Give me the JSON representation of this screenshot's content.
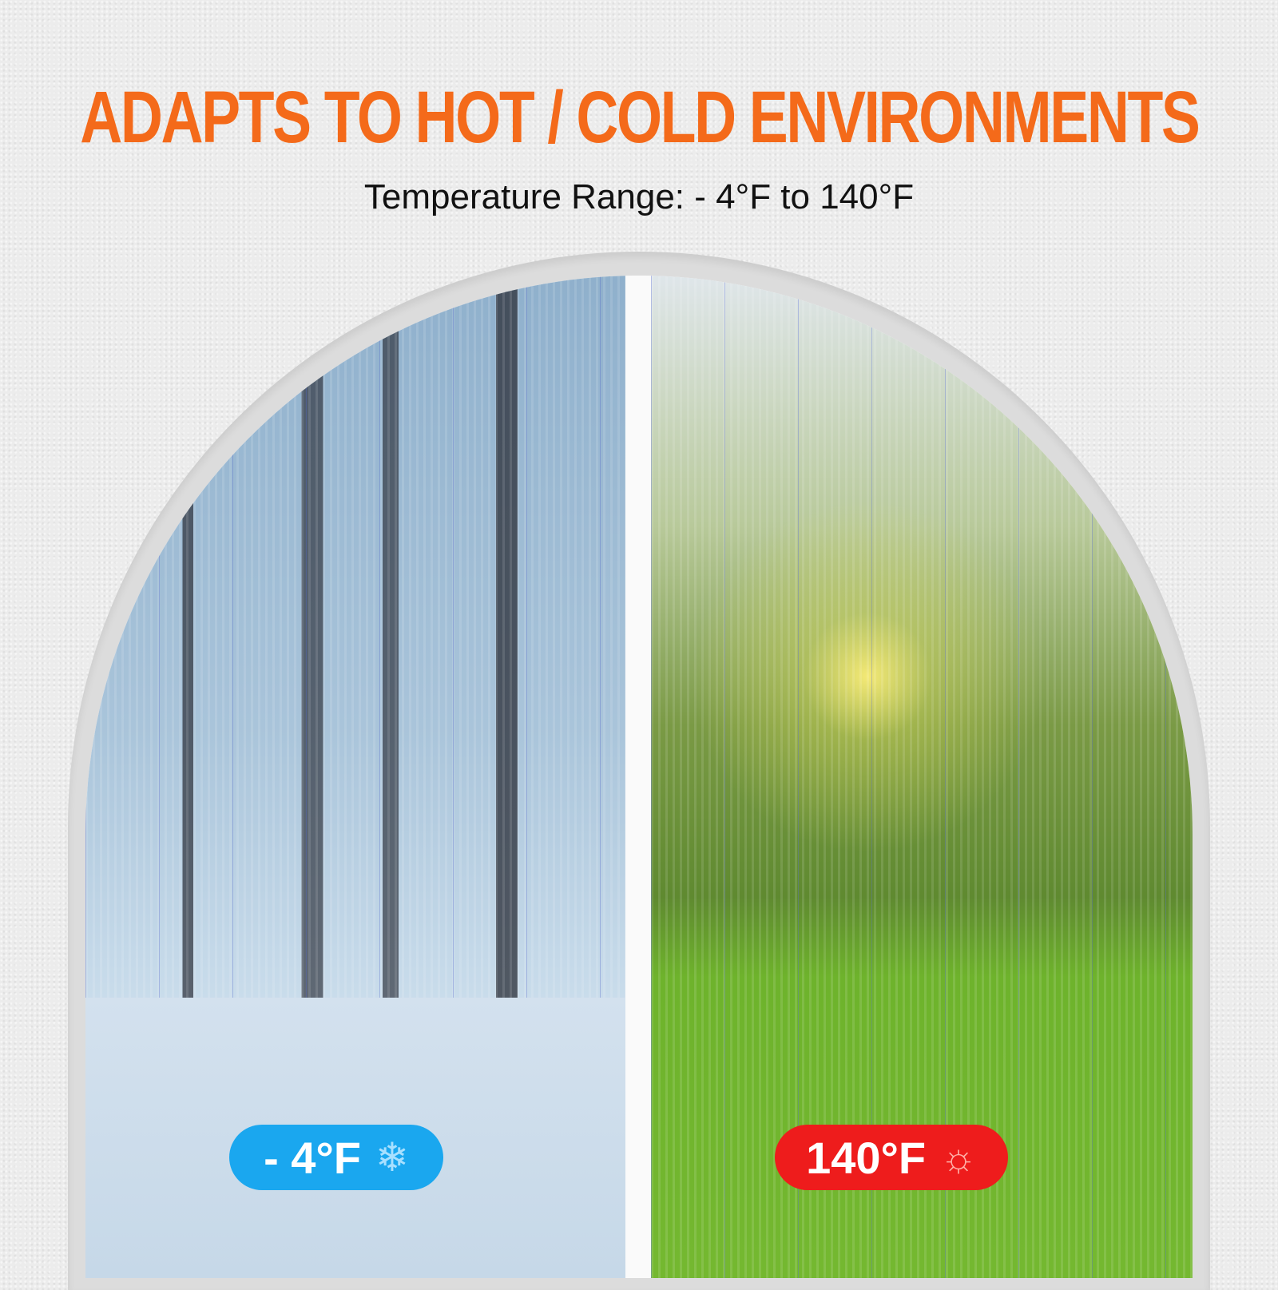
{
  "header": {
    "title": "ADAPTS TO HOT / COLD ENVIRONMENTS",
    "subtitle": "Temperature Range: - 4°F to 140°F"
  },
  "badges": [
    {
      "label": "- 4°F",
      "icon": "snowflake-icon",
      "color": "#1aa7ef"
    },
    {
      "label": "140°F",
      "icon": "sun-icon",
      "color": "#ee1c1c"
    }
  ],
  "colors": {
    "title": "#f46a1a"
  }
}
